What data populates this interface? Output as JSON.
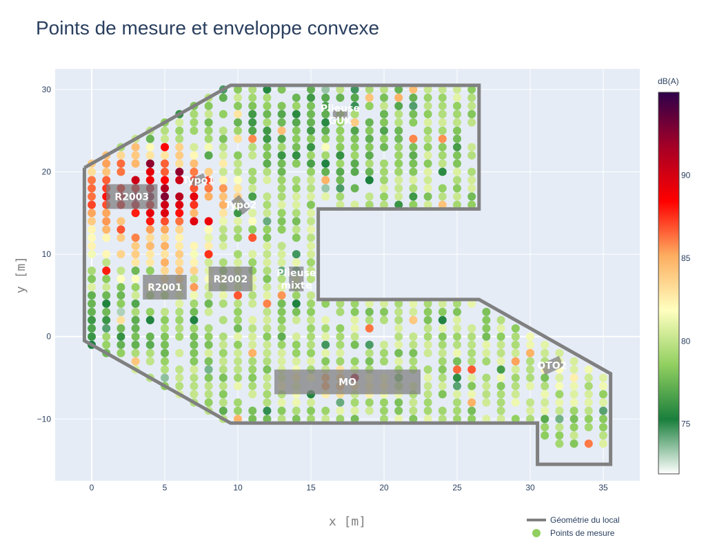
{
  "chart_data": {
    "type": "scatter",
    "title": "Points de mesure et enveloppe convexe",
    "xlabel": "x [m]",
    "ylabel": "y [m]",
    "xlim": [
      -2.5,
      37.5
    ],
    "ylim": [
      -17.5,
      32.5
    ],
    "x_ticks": [
      0,
      5,
      10,
      15,
      20,
      25,
      30,
      35
    ],
    "x_tick_labels": [
      "0",
      "5",
      "10",
      "15",
      "20",
      "25",
      "30",
      "35"
    ],
    "y_ticks": [
      -10,
      0,
      10,
      20,
      30
    ],
    "y_tick_labels": [
      "−10",
      "0",
      "10",
      "20",
      "30"
    ],
    "grid": true,
    "colorbar": {
      "title": "dB(A)",
      "range": [
        72,
        95
      ],
      "ticks": [
        75,
        80,
        85,
        90
      ],
      "tick_labels": [
        "75",
        "80",
        "85",
        "90"
      ],
      "colorscale": [
        "#ffffff",
        "#1a7f3c",
        "#91cf60",
        "#ffffbf",
        "#fdae61",
        "#ff0000",
        "#a50026",
        "#2d004b"
      ]
    },
    "legend": {
      "placement": "bottom-right",
      "entries": [
        {
          "name": "Géométrie du local",
          "kind": "line",
          "color": "#808080"
        },
        {
          "name": "Points de mesure",
          "kind": "marker",
          "color": "#91cf60"
        }
      ]
    },
    "series": [
      {
        "name": "Géométrie du local",
        "kind": "line",
        "color": "#808080",
        "x": [
          -0.5,
          9.5,
          26.5,
          26.5,
          15.5,
          15.5,
          26.5,
          35.5,
          35.5,
          30.5,
          30.5,
          9.5,
          -0.5,
          -0.5
        ],
        "y": [
          20.5,
          30.5,
          30.5,
          15.5,
          15.5,
          4.5,
          4.5,
          -4.5,
          -15.5,
          -15.5,
          -10.5,
          -10.5,
          -0.5,
          20.5
        ]
      },
      {
        "name": "Points de mesure",
        "kind": "marker",
        "x_range": [
          0,
          35
        ],
        "y_range": [
          -13,
          30
        ],
        "step": 1
      }
    ],
    "zones": [
      {
        "label": "R2003",
        "x": [
          1,
          4.5
        ],
        "y": [
          15.5,
          18.5
        ],
        "angle": 0
      },
      {
        "label": "Typo1",
        "x": [
          6.8,
          7.8
        ],
        "y": [
          18.5,
          19.5
        ],
        "angle": 25
      },
      {
        "label": "Typo2",
        "x": [
          9.6,
          10.8
        ],
        "y": [
          15.4,
          16.6
        ],
        "angle": -50
      },
      {
        "label": "R2001",
        "x": [
          3.5,
          6.5
        ],
        "y": [
          4.5,
          7.5
        ],
        "angle": 0
      },
      {
        "label": "R2002",
        "x": [
          8,
          11
        ],
        "y": [
          5.5,
          8.5
        ],
        "angle": 0
      },
      {
        "label": "Plieuse\nmixte",
        "x": [
          13.5,
          14.5
        ],
        "y": [
          5.5,
          8.5
        ],
        "angle": 0
      },
      {
        "label": "Plieuse\nGUK",
        "x": [
          16.5,
          17.5
        ],
        "y": [
          26.5,
          27.5
        ],
        "angle": 0
      },
      {
        "label": "MO",
        "x": [
          12.5,
          22.5
        ],
        "y": [
          -7,
          -4
        ],
        "angle": 0
      },
      {
        "label": "OTO2",
        "x": [
          30.8,
          32.2
        ],
        "y": [
          -4.2,
          -2.8
        ],
        "angle": 25
      }
    ]
  }
}
